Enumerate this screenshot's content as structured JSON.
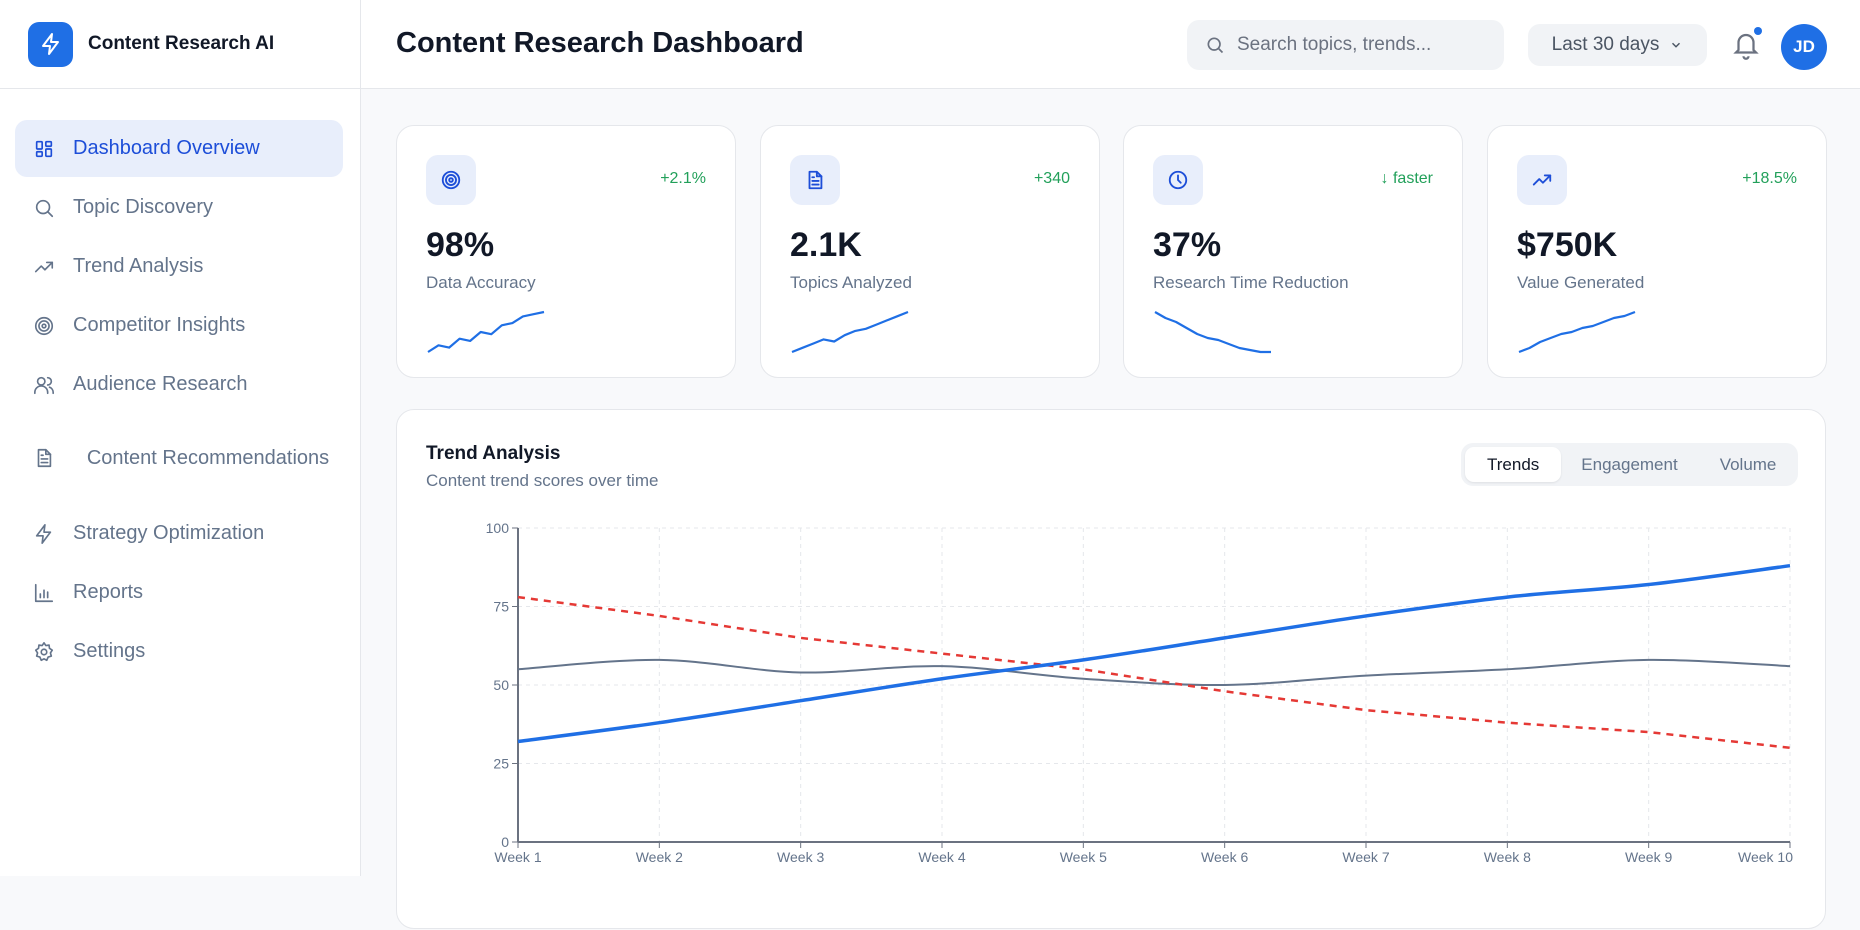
{
  "app": {
    "name": "Content Research AI"
  },
  "sidebar": {
    "items": [
      {
        "label": "Dashboard Overview",
        "icon": "dashboard-grid-icon",
        "active": true
      },
      {
        "label": "Topic Discovery",
        "icon": "search-icon"
      },
      {
        "label": "Trend Analysis",
        "icon": "trending-up-icon"
      },
      {
        "label": "Competitor Insights",
        "icon": "target-icon"
      },
      {
        "label": "Audience Research",
        "icon": "users-icon"
      },
      {
        "label": "Content Recommendations",
        "icon": "document-icon"
      },
      {
        "label": "Strategy Optimization",
        "icon": "lightning-icon"
      },
      {
        "label": "Reports",
        "icon": "bar-chart-icon"
      },
      {
        "label": "Settings",
        "icon": "gear-icon"
      }
    ]
  },
  "header": {
    "title": "Content Research Dashboard",
    "search_placeholder": "Search topics, trends...",
    "date_range": "Last 30 days",
    "avatar_initials": "JD",
    "has_notification": true
  },
  "stats": [
    {
      "icon": "target-icon",
      "delta": "+2.1%",
      "value": "98%",
      "label": "Data Accuracy",
      "spark": [
        2,
        5,
        4,
        8,
        7,
        11,
        10,
        14,
        15,
        18,
        19,
        20
      ]
    },
    {
      "icon": "document-icon",
      "delta": "+340",
      "value": "2.1K",
      "label": "Topics Analyzed",
      "spark": [
        2,
        4,
        6,
        8,
        7,
        10,
        12,
        13,
        15,
        17,
        19,
        21
      ]
    },
    {
      "icon": "clock-icon",
      "delta": "↓ faster",
      "value": "37%",
      "label": "Research Time Reduction",
      "spark": [
        22,
        19,
        17,
        14,
        11,
        9,
        8,
        6,
        4,
        3,
        2,
        2
      ]
    },
    {
      "icon": "trending-up-icon",
      "delta": "+18.5%",
      "value": "$750K",
      "label": "Value Generated",
      "spark": [
        2,
        4,
        7,
        9,
        11,
        12,
        14,
        15,
        17,
        19,
        20,
        22
      ]
    }
  ],
  "colors": {
    "accent": "#1f6fe5",
    "positive": "#22a05a",
    "series_blue": "#1f6fe5",
    "series_gray": "#64748b",
    "series_red": "#e53935"
  },
  "panel": {
    "title": "Trend Analysis",
    "subtitle": "Content trend scores over time",
    "tabs": [
      {
        "label": "Trends",
        "active": true
      },
      {
        "label": "Engagement"
      },
      {
        "label": "Volume"
      }
    ]
  },
  "chart_data": {
    "type": "line",
    "categories": [
      "Week 1",
      "Week 2",
      "Week 3",
      "Week 4",
      "Week 5",
      "Week 6",
      "Week 7",
      "Week 8",
      "Week 9",
      "Week 10"
    ],
    "ylim": [
      0,
      100
    ],
    "yticks": [
      0,
      25,
      50,
      75,
      100
    ],
    "grid": true,
    "series": [
      {
        "values": [
          32,
          38,
          45,
          52,
          58,
          65,
          72,
          78,
          82,
          88
        ],
        "color": "#1f6fe5",
        "style": "solid-thick"
      },
      {
        "values": [
          55,
          58,
          54,
          56,
          52,
          50,
          53,
          55,
          58,
          56
        ],
        "color": "#64748b",
        "style": "solid-smooth"
      },
      {
        "values": [
          78,
          72,
          65,
          60,
          55,
          48,
          42,
          38,
          35,
          30
        ],
        "color": "#e53935",
        "style": "dashed"
      }
    ]
  }
}
